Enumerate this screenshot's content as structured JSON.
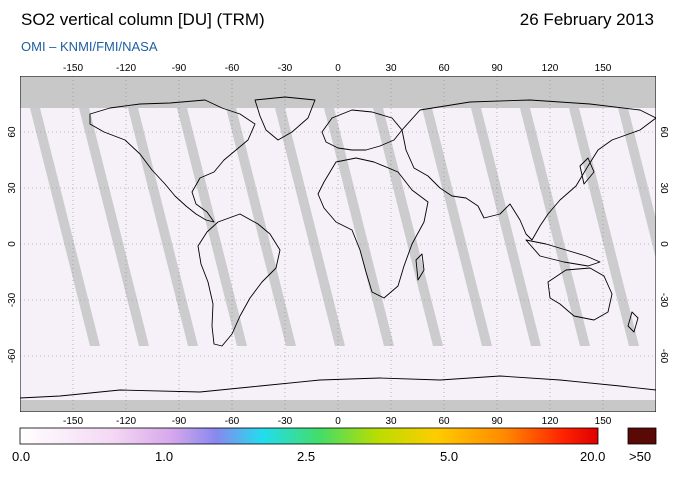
{
  "header": {
    "title": "SO2 vertical column [DU] (TRM)",
    "date": "26 February 2013",
    "subtitle": "OMI  –  KNMI/FMI/NASA"
  },
  "map": {
    "projection": "equirectangular",
    "lon_range": [
      -180,
      180
    ],
    "lat_range": [
      -90,
      90
    ],
    "lon_ticks": [
      "-150",
      "-120",
      "-90",
      "-60",
      "-30",
      "0",
      "30",
      "60",
      "90",
      "120",
      "150"
    ],
    "lat_ticks": [
      "60",
      "30",
      "0",
      "-30",
      "-60"
    ],
    "grid": "dotted",
    "colors": {
      "land_outline": "#000000",
      "no_data": "#c8c8c8",
      "swath_gap": "#bfbfbf",
      "background": "#f6f0f8"
    }
  },
  "colorbar": {
    "labels": [
      "0.0",
      "1.0",
      "2.5",
      "5.0",
      "20.0"
    ],
    "overflow_label": ">50",
    "colors": [
      "#ffffff",
      "#f4d8f4",
      "#d8a8ec",
      "#8888ee",
      "#22ddee",
      "#44dd66",
      "#bbdd00",
      "#ffcc00",
      "#ff8800",
      "#ff2200",
      "#dd0000"
    ],
    "overflow_color": "#5a0a06"
  }
}
